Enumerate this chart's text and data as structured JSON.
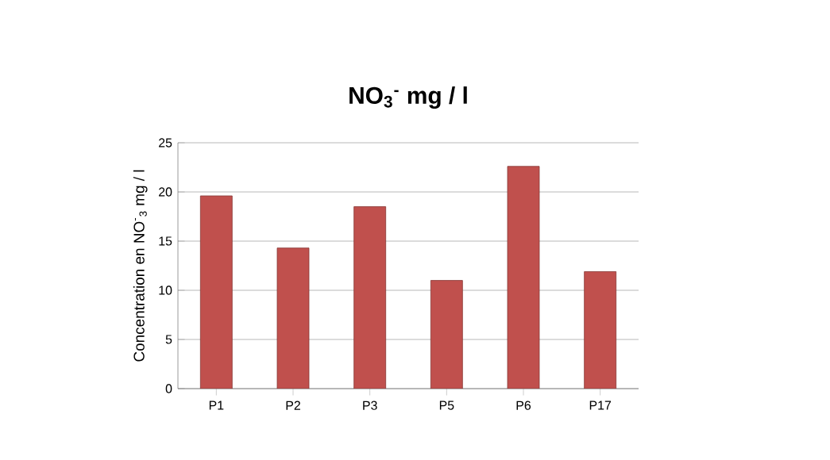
{
  "chart_data": {
    "type": "bar",
    "title": "NO$_{3}$$^{-}$ mg / l",
    "ylabel": "Concentration en NO$^{-}$$_{3}$  mg / l",
    "categories": [
      "P1",
      "P2",
      "P3",
      "P5",
      "P6",
      "P17"
    ],
    "values": [
      19.6,
      14.3,
      18.5,
      11.0,
      22.6,
      11.9
    ],
    "color": "#c0504d",
    "ylim": [
      0,
      25
    ],
    "yticks": [
      0,
      5,
      10,
      15,
      20,
      25
    ],
    "grid": "y"
  }
}
